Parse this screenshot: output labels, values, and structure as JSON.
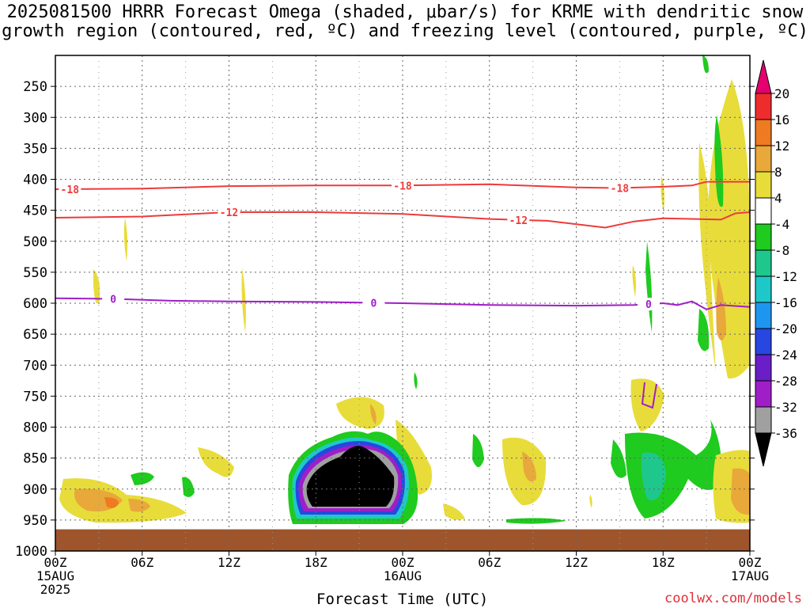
{
  "title": {
    "line1": "2025081500 HRRR Forecast Omega (shaded, μbar/s) for KRME with dendritic snow",
    "line2": "growth region (contoured, red, ºC) and freezing level (contoured, purple, ºC)"
  },
  "credit": "coolwx.com/models",
  "chart_data": {
    "type": "heatmap",
    "xlabel": "Forecast Time (UTC)",
    "ylabel": "",
    "x_ticks": [
      {
        "hour": 0,
        "lines": [
          "00Z",
          "15AUG",
          "2025"
        ]
      },
      {
        "hour": 6,
        "lines": [
          "06Z"
        ]
      },
      {
        "hour": 12,
        "lines": [
          "12Z"
        ]
      },
      {
        "hour": 18,
        "lines": [
          "18Z"
        ]
      },
      {
        "hour": 24,
        "lines": [
          "00Z",
          "16AUG"
        ]
      },
      {
        "hour": 30,
        "lines": [
          "06Z"
        ]
      },
      {
        "hour": 36,
        "lines": [
          "12Z"
        ]
      },
      {
        "hour": 42,
        "lines": [
          "18Z"
        ]
      },
      {
        "hour": 48,
        "lines": [
          "00Z",
          "17AUG"
        ]
      }
    ],
    "y_ticks": [
      250,
      300,
      350,
      400,
      450,
      500,
      550,
      600,
      650,
      700,
      750,
      800,
      850,
      900,
      950,
      1000
    ],
    "xlim": [
      0,
      48
    ],
    "ylim": [
      200,
      1000
    ],
    "y_axis": "pressure (hPa), inverted",
    "grid": true,
    "colorbar": {
      "levels": [
        20,
        16,
        12,
        8,
        4,
        -4,
        -8,
        -12,
        -16,
        -20,
        -24,
        -28,
        -32,
        -36
      ],
      "colors": [
        "#e4006e",
        "#ee2c2c",
        "#ee7a22",
        "#e8a83a",
        "#e8dc3a",
        "#ffffff",
        "#1ecb1e",
        "#1ec88c",
        "#1ec8c8",
        "#1e96f0",
        "#2846e0",
        "#6a1ec8",
        "#a01ec8",
        "#a0a0a0",
        "#000000"
      ]
    },
    "contours": [
      {
        "label": "-18",
        "color": "#ee3a3a",
        "points": [
          [
            0,
            416
          ],
          [
            6,
            415
          ],
          [
            12,
            411
          ],
          [
            18,
            410
          ],
          [
            24,
            410
          ],
          [
            30,
            408
          ],
          [
            36,
            413
          ],
          [
            39,
            414
          ],
          [
            42,
            412
          ],
          [
            44,
            410
          ],
          [
            45,
            404
          ],
          [
            48,
            404
          ]
        ]
      },
      {
        "label": "-12",
        "color": "#ee3a3a",
        "points": [
          [
            0,
            462
          ],
          [
            6,
            460
          ],
          [
            12,
            453
          ],
          [
            18,
            453
          ],
          [
            24,
            456
          ],
          [
            30,
            464
          ],
          [
            34,
            467
          ],
          [
            38,
            478
          ],
          [
            40,
            468
          ],
          [
            42,
            463
          ],
          [
            46,
            465
          ],
          [
            47,
            455
          ],
          [
            48,
            453
          ]
        ]
      },
      {
        "label": "0",
        "color": "#a01ec8",
        "points": [
          [
            0,
            592
          ],
          [
            4,
            593
          ],
          [
            8,
            596
          ],
          [
            12,
            597
          ],
          [
            18,
            598
          ],
          [
            24,
            600
          ],
          [
            30,
            603
          ],
          [
            36,
            604
          ],
          [
            40,
            603
          ],
          [
            42,
            600
          ],
          [
            43,
            603
          ],
          [
            44,
            597
          ],
          [
            45,
            610
          ],
          [
            46,
            603
          ],
          [
            48,
            606
          ]
        ]
      }
    ],
    "surface_color": "#9e552c"
  }
}
